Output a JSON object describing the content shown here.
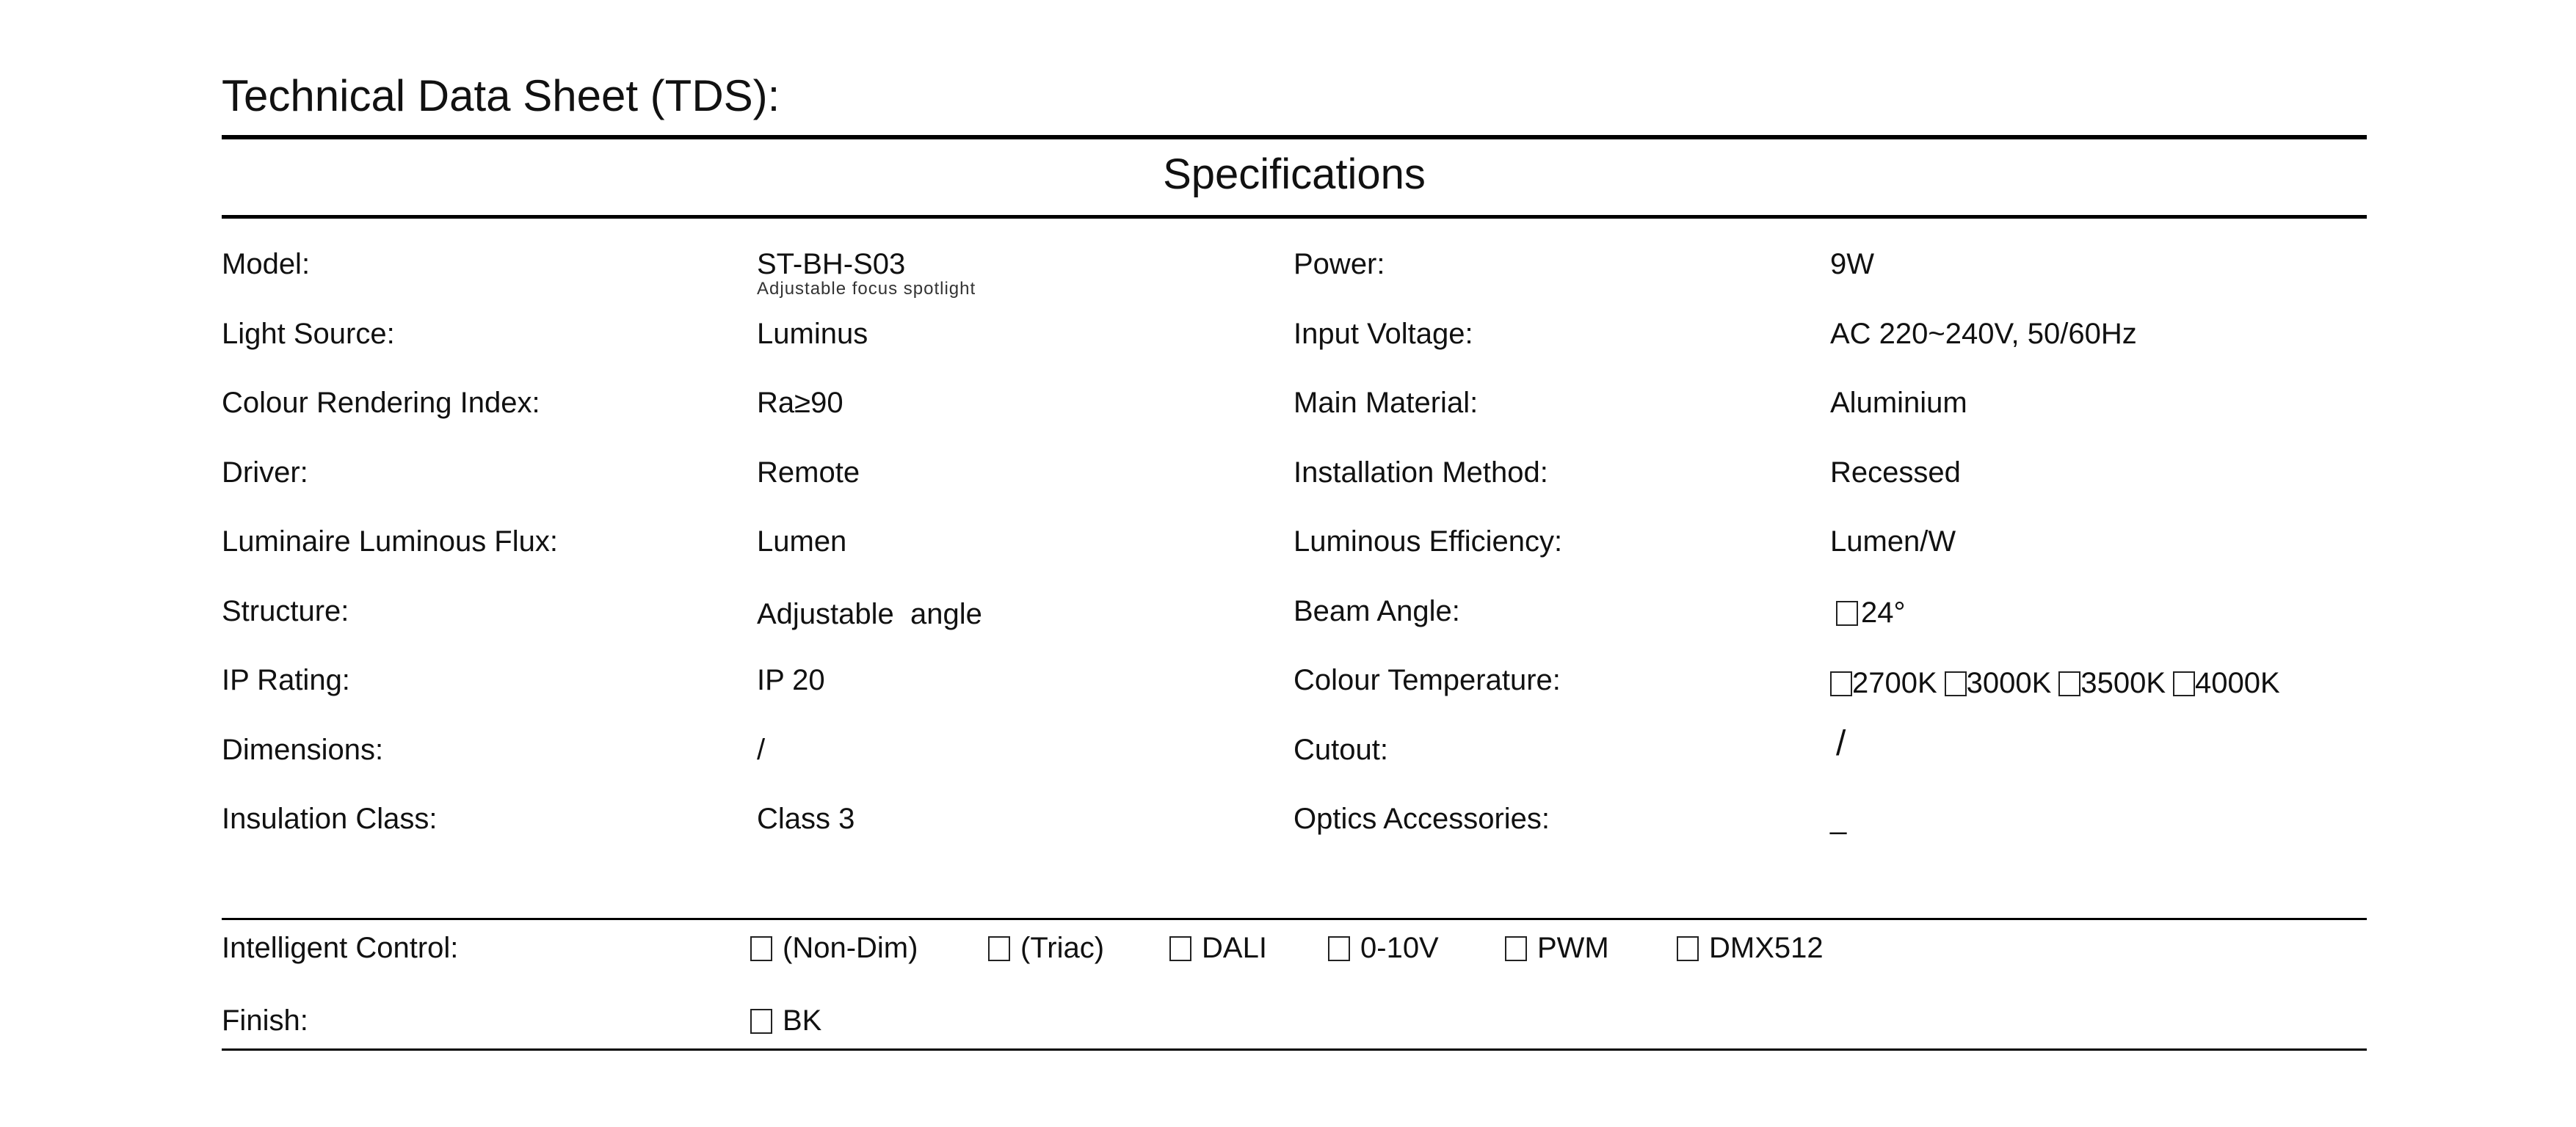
{
  "title": "Technical Data Sheet (TDS):",
  "heading": "Specifications",
  "rows": [
    {
      "label": "Model:",
      "value": "ST-BH-S03",
      "note": "Adjustable focus spotlight",
      "label2": "Power:",
      "value2": "9W"
    },
    {
      "label": "Light Source:",
      "value": "Luminus",
      "label2": "Input Voltage:",
      "value2": "AC 220~240V, 50/60Hz"
    },
    {
      "label": "Colour Rendering Index:",
      "value": "Ra≥90",
      "label2": "Main Material:",
      "value2": "Aluminium"
    },
    {
      "label": "Driver:",
      "value": "Remote",
      "label2": "Installation Method:",
      "value2": "Recessed"
    },
    {
      "label": "Luminaire Luminous Flux:",
      "value": "Lumen",
      "label2": "Luminous Efficiency:",
      "value2": "Lumen/W"
    },
    {
      "label": "Structure:",
      "value": "Adjustable  angle",
      "label2": "Beam Angle:",
      "value2": ""
    },
    {
      "label": "IP Rating:",
      "value": "IP 20",
      "label2": "Colour Temperature:",
      "value2": ""
    },
    {
      "label": "Dimensions:",
      "value": "/",
      "label2": "Cutout:",
      "value2": "/"
    },
    {
      "label": "Insulation Class:",
      "value": "Class 3",
      "label2": "Optics Accessories:",
      "value2": "_"
    }
  ],
  "beam_angle_options": [
    "24°"
  ],
  "colour_temperature_options": [
    "2700K",
    "3000K",
    "3500K",
    "4000K"
  ],
  "intelligent_control": {
    "label": "Intelligent Control:",
    "options": [
      "(Non-Dim)",
      "(Triac)",
      "DALI",
      "0-10V",
      "PWM",
      "DMX512"
    ]
  },
  "finish": {
    "label": "Finish:",
    "options": [
      "BK"
    ]
  }
}
